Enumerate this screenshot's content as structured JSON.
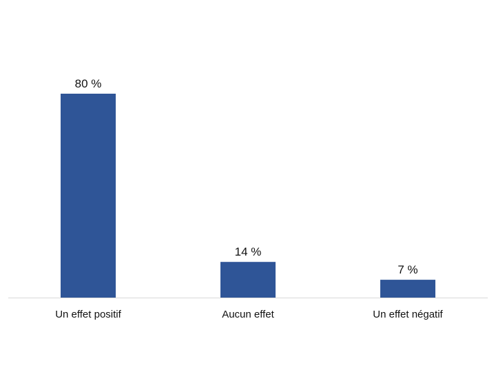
{
  "chart_data": {
    "type": "bar",
    "title": "",
    "xlabel": "",
    "ylabel": "",
    "categories": [
      "Un effet positif",
      "Aucun effet",
      "Un effet négatif"
    ],
    "values": [
      80,
      14,
      7
    ],
    "data_labels": [
      "80 %",
      "14 %",
      "7 %"
    ],
    "ylim": [
      0,
      100
    ],
    "grid": false,
    "legend": "none",
    "bar_color": "#2f5597",
    "axis_color": "#d9d9d9"
  }
}
